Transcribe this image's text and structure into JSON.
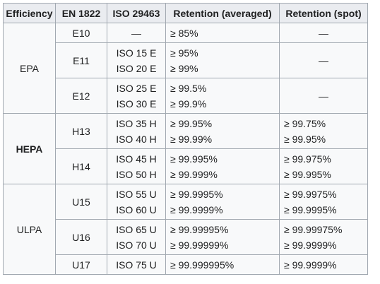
{
  "headers": [
    "Efficiency",
    "EN 1822",
    "ISO 29463",
    "Retention (averaged)",
    "Retention (spot)"
  ],
  "groups": [
    {
      "name": "EPA",
      "rows": [
        {
          "en": "E10",
          "iso": [
            "—"
          ],
          "avg": [
            "≥ 85%"
          ],
          "spot": [
            "—"
          ]
        },
        {
          "en": "E11",
          "iso": [
            "ISO 15 E",
            "ISO 20 E"
          ],
          "avg": [
            "≥ 95%",
            "≥ 99%"
          ],
          "spot": [
            "—"
          ]
        },
        {
          "en": "E12",
          "iso": [
            "ISO 25 E",
            "ISO 30 E"
          ],
          "avg": [
            "≥ 99.5%",
            "≥ 99.9%"
          ],
          "spot": [
            "—"
          ]
        }
      ]
    },
    {
      "name": "HEPA",
      "rows": [
        {
          "en": "H13",
          "iso": [
            "ISO 35 H",
            "ISO 40 H"
          ],
          "avg": [
            "≥ 99.95%",
            "≥ 99.99%"
          ],
          "spot": [
            "≥ 99.75%",
            "≥ 99.95%"
          ]
        },
        {
          "en": "H14",
          "iso": [
            "ISO 45 H",
            "ISO 50 H"
          ],
          "avg": [
            "≥ 99.995%",
            "≥ 99.999%"
          ],
          "spot": [
            "≥ 99.975%",
            "≥ 99.995%"
          ]
        }
      ]
    },
    {
      "name": "ULPA",
      "rows": [
        {
          "en": "U15",
          "iso": [
            "ISO 55 U",
            "ISO 60 U"
          ],
          "avg": [
            "≥ 99.9995%",
            "≥ 99.9999%"
          ],
          "spot": [
            "≥ 99.9975%",
            "≥ 99.9995%"
          ]
        },
        {
          "en": "U16",
          "iso": [
            "ISO 65 U",
            "ISO 70 U"
          ],
          "avg": [
            "≥ 99.99995%",
            "≥ 99.99999%"
          ],
          "spot": [
            "≥ 99.99975%",
            "≥ 99.9999%"
          ]
        },
        {
          "en": "U17",
          "iso": [
            "ISO 75 U"
          ],
          "avg": [
            "≥ 99.999995%"
          ],
          "spot": [
            "≥ 99.9999%"
          ]
        }
      ]
    }
  ]
}
